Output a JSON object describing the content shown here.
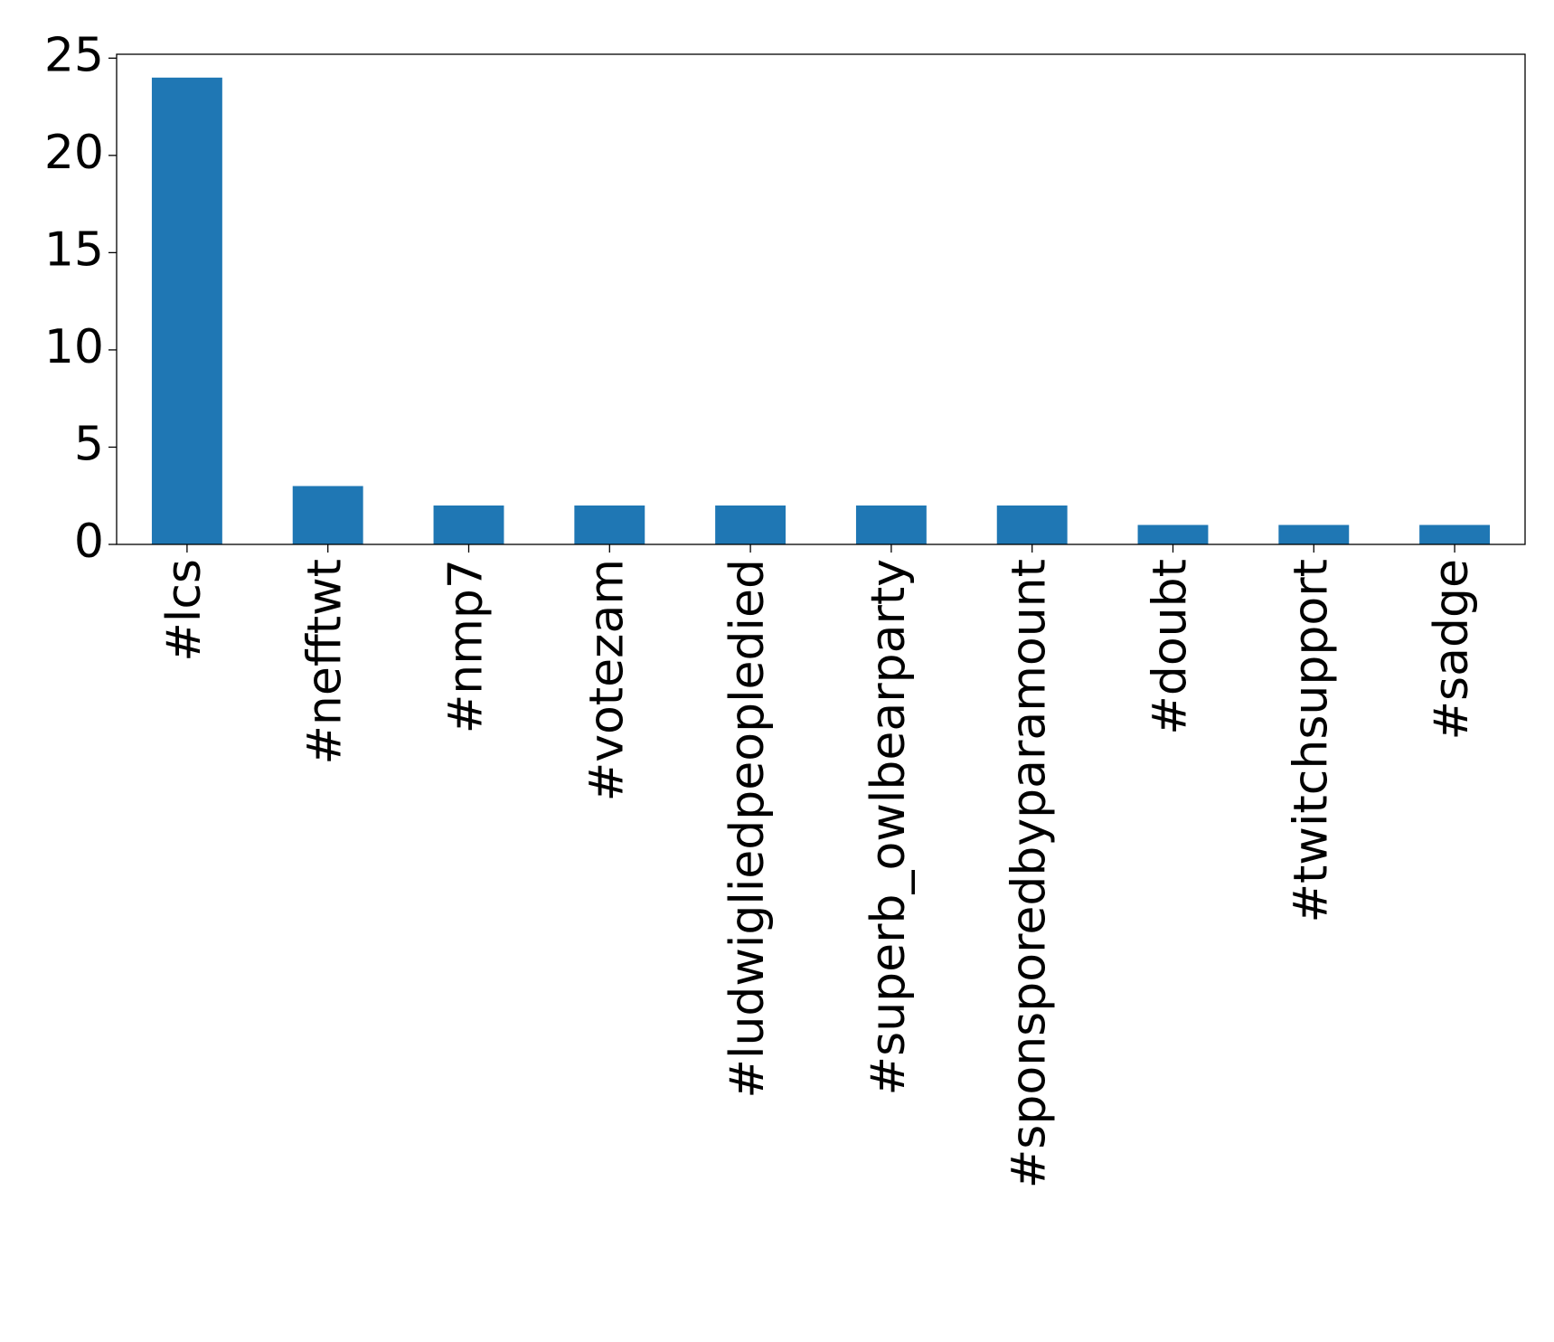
{
  "chart_data": {
    "type": "bar",
    "categories": [
      "#lcs",
      "#nefftwt",
      "#nmp7",
      "#votezam",
      "#ludwigliedpeopledied",
      "#superb_owlbearparty",
      "#sponsporedbyparamount",
      "#doubt",
      "#twitchsupport",
      "#sadge"
    ],
    "values": [
      24,
      3,
      2,
      2,
      2,
      2,
      2,
      1,
      1,
      1
    ],
    "color": "#1f77b4",
    "ylim": [
      0,
      25.2
    ],
    "yticks": [
      0,
      5,
      10,
      15,
      20,
      25
    ],
    "grid": false
  }
}
